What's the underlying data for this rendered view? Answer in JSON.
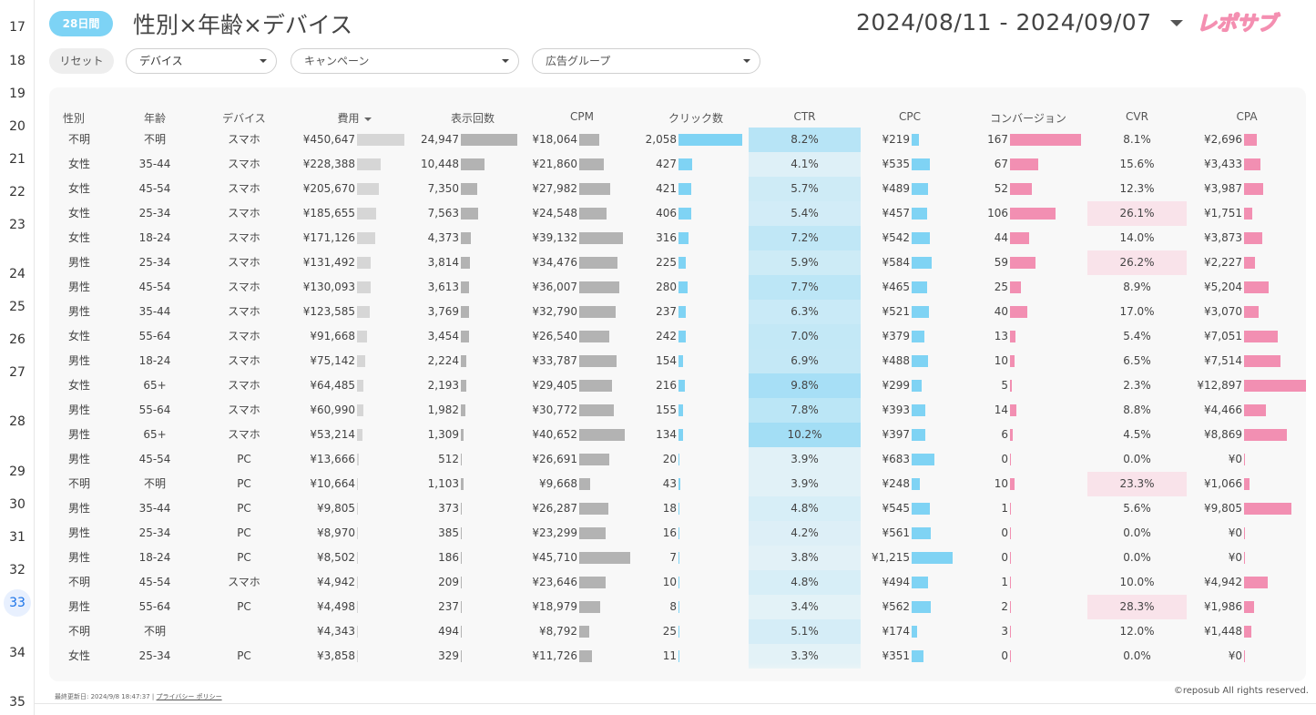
{
  "row_numbers": [
    "17",
    "18",
    "19",
    "20",
    "21",
    "22",
    "23",
    "24",
    "25",
    "26",
    "27",
    "28",
    "29",
    "30",
    "31",
    "32",
    "33",
    "34",
    "35"
  ],
  "active_row": "33",
  "header": {
    "period_badge": "28日間",
    "title": "性別×年齢×デバイス",
    "date_range": "2024/08/11 - 2024/09/07",
    "logo_text": "レポサブ"
  },
  "filters": {
    "reset_label": "リセット",
    "device": "デバイス",
    "campaign": "キャンペーン",
    "ad_group": "広告グループ"
  },
  "columns": [
    "性別",
    "年齢",
    "デバイス",
    "費用",
    "表示回数",
    "CPM",
    "クリック数",
    "CTR",
    "CPC",
    "コンバージョン",
    "CVR",
    "CPA"
  ],
  "sort_column": "費用",
  "rows": [
    {
      "gender": "不明",
      "age": "不明",
      "device": "スマホ",
      "cost": "¥450,647",
      "impr": "24,947",
      "cpm": "¥18,064",
      "clicks": "2,058",
      "ctr": "8.2%",
      "cpc": "¥219",
      "conv": "167",
      "cvr": "8.1%",
      "cpa": "¥2,696",
      "cost_v": 450647,
      "impr_v": 24947,
      "cpm_v": 18064,
      "clicks_v": 2058,
      "ctr_v": 8.2,
      "cpc_v": 219,
      "conv_v": 167,
      "cvr_v": 8.1,
      "cpa_v": 2696
    },
    {
      "gender": "女性",
      "age": "35-44",
      "device": "スマホ",
      "cost": "¥228,388",
      "impr": "10,448",
      "cpm": "¥21,860",
      "clicks": "427",
      "ctr": "4.1%",
      "cpc": "¥535",
      "conv": "67",
      "cvr": "15.6%",
      "cpa": "¥3,433",
      "cost_v": 228388,
      "impr_v": 10448,
      "cpm_v": 21860,
      "clicks_v": 427,
      "ctr_v": 4.1,
      "cpc_v": 535,
      "conv_v": 67,
      "cvr_v": 15.6,
      "cpa_v": 3433
    },
    {
      "gender": "女性",
      "age": "45-54",
      "device": "スマホ",
      "cost": "¥205,670",
      "impr": "7,350",
      "cpm": "¥27,982",
      "clicks": "421",
      "ctr": "5.7%",
      "cpc": "¥489",
      "conv": "52",
      "cvr": "12.3%",
      "cpa": "¥3,987",
      "cost_v": 205670,
      "impr_v": 7350,
      "cpm_v": 27982,
      "clicks_v": 421,
      "ctr_v": 5.7,
      "cpc_v": 489,
      "conv_v": 52,
      "cvr_v": 12.3,
      "cpa_v": 3987
    },
    {
      "gender": "女性",
      "age": "25-34",
      "device": "スマホ",
      "cost": "¥185,655",
      "impr": "7,563",
      "cpm": "¥24,548",
      "clicks": "406",
      "ctr": "5.4%",
      "cpc": "¥457",
      "conv": "106",
      "cvr": "26.1%",
      "cpa": "¥1,751",
      "cost_v": 185655,
      "impr_v": 7563,
      "cpm_v": 24548,
      "clicks_v": 406,
      "ctr_v": 5.4,
      "cpc_v": 457,
      "conv_v": 106,
      "cvr_v": 26.1,
      "cpa_v": 1751
    },
    {
      "gender": "女性",
      "age": "18-24",
      "device": "スマホ",
      "cost": "¥171,126",
      "impr": "4,373",
      "cpm": "¥39,132",
      "clicks": "316",
      "ctr": "7.2%",
      "cpc": "¥542",
      "conv": "44",
      "cvr": "14.0%",
      "cpa": "¥3,873",
      "cost_v": 171126,
      "impr_v": 4373,
      "cpm_v": 39132,
      "clicks_v": 316,
      "ctr_v": 7.2,
      "cpc_v": 542,
      "conv_v": 44,
      "cvr_v": 14.0,
      "cpa_v": 3873
    },
    {
      "gender": "男性",
      "age": "25-34",
      "device": "スマホ",
      "cost": "¥131,492",
      "impr": "3,814",
      "cpm": "¥34,476",
      "clicks": "225",
      "ctr": "5.9%",
      "cpc": "¥584",
      "conv": "59",
      "cvr": "26.2%",
      "cpa": "¥2,227",
      "cost_v": 131492,
      "impr_v": 3814,
      "cpm_v": 34476,
      "clicks_v": 225,
      "ctr_v": 5.9,
      "cpc_v": 584,
      "conv_v": 59,
      "cvr_v": 26.2,
      "cpa_v": 2227
    },
    {
      "gender": "男性",
      "age": "45-54",
      "device": "スマホ",
      "cost": "¥130,093",
      "impr": "3,613",
      "cpm": "¥36,007",
      "clicks": "280",
      "ctr": "7.7%",
      "cpc": "¥465",
      "conv": "25",
      "cvr": "8.9%",
      "cpa": "¥5,204",
      "cost_v": 130093,
      "impr_v": 3613,
      "cpm_v": 36007,
      "clicks_v": 280,
      "ctr_v": 7.7,
      "cpc_v": 465,
      "conv_v": 25,
      "cvr_v": 8.9,
      "cpa_v": 5204
    },
    {
      "gender": "男性",
      "age": "35-44",
      "device": "スマホ",
      "cost": "¥123,585",
      "impr": "3,769",
      "cpm": "¥32,790",
      "clicks": "237",
      "ctr": "6.3%",
      "cpc": "¥521",
      "conv": "40",
      "cvr": "17.0%",
      "cpa": "¥3,070",
      "cost_v": 123585,
      "impr_v": 3769,
      "cpm_v": 32790,
      "clicks_v": 237,
      "ctr_v": 6.3,
      "cpc_v": 521,
      "conv_v": 40,
      "cvr_v": 17.0,
      "cpa_v": 3070
    },
    {
      "gender": "女性",
      "age": "55-64",
      "device": "スマホ",
      "cost": "¥91,668",
      "impr": "3,454",
      "cpm": "¥26,540",
      "clicks": "242",
      "ctr": "7.0%",
      "cpc": "¥379",
      "conv": "13",
      "cvr": "5.4%",
      "cpa": "¥7,051",
      "cost_v": 91668,
      "impr_v": 3454,
      "cpm_v": 26540,
      "clicks_v": 242,
      "ctr_v": 7.0,
      "cpc_v": 379,
      "conv_v": 13,
      "cvr_v": 5.4,
      "cpa_v": 7051
    },
    {
      "gender": "男性",
      "age": "18-24",
      "device": "スマホ",
      "cost": "¥75,142",
      "impr": "2,224",
      "cpm": "¥33,787",
      "clicks": "154",
      "ctr": "6.9%",
      "cpc": "¥488",
      "conv": "10",
      "cvr": "6.5%",
      "cpa": "¥7,514",
      "cost_v": 75142,
      "impr_v": 2224,
      "cpm_v": 33787,
      "clicks_v": 154,
      "ctr_v": 6.9,
      "cpc_v": 488,
      "conv_v": 10,
      "cvr_v": 6.5,
      "cpa_v": 7514
    },
    {
      "gender": "女性",
      "age": "65+",
      "device": "スマホ",
      "cost": "¥64,485",
      "impr": "2,193",
      "cpm": "¥29,405",
      "clicks": "216",
      "ctr": "9.8%",
      "cpc": "¥299",
      "conv": "5",
      "cvr": "2.3%",
      "cpa": "¥12,897",
      "cost_v": 64485,
      "impr_v": 2193,
      "cpm_v": 29405,
      "clicks_v": 216,
      "ctr_v": 9.8,
      "cpc_v": 299,
      "conv_v": 5,
      "cvr_v": 2.3,
      "cpa_v": 12897
    },
    {
      "gender": "男性",
      "age": "55-64",
      "device": "スマホ",
      "cost": "¥60,990",
      "impr": "1,982",
      "cpm": "¥30,772",
      "clicks": "155",
      "ctr": "7.8%",
      "cpc": "¥393",
      "conv": "14",
      "cvr": "8.8%",
      "cpa": "¥4,466",
      "cost_v": 60990,
      "impr_v": 1982,
      "cpm_v": 30772,
      "clicks_v": 155,
      "ctr_v": 7.8,
      "cpc_v": 393,
      "conv_v": 14,
      "cvr_v": 8.8,
      "cpa_v": 4466
    },
    {
      "gender": "男性",
      "age": "65+",
      "device": "スマホ",
      "cost": "¥53,214",
      "impr": "1,309",
      "cpm": "¥40,652",
      "clicks": "134",
      "ctr": "10.2%",
      "cpc": "¥397",
      "conv": "6",
      "cvr": "4.5%",
      "cpa": "¥8,869",
      "cost_v": 53214,
      "impr_v": 1309,
      "cpm_v": 40652,
      "clicks_v": 134,
      "ctr_v": 10.2,
      "cpc_v": 397,
      "conv_v": 6,
      "cvr_v": 4.5,
      "cpa_v": 8869
    },
    {
      "gender": "男性",
      "age": "45-54",
      "device": "PC",
      "cost": "¥13,666",
      "impr": "512",
      "cpm": "¥26,691",
      "clicks": "20",
      "ctr": "3.9%",
      "cpc": "¥683",
      "conv": "0",
      "cvr": "0.0%",
      "cpa": "¥0",
      "cost_v": 13666,
      "impr_v": 512,
      "cpm_v": 26691,
      "clicks_v": 20,
      "ctr_v": 3.9,
      "cpc_v": 683,
      "conv_v": 0,
      "cvr_v": 0.0,
      "cpa_v": 0
    },
    {
      "gender": "不明",
      "age": "不明",
      "device": "PC",
      "cost": "¥10,664",
      "impr": "1,103",
      "cpm": "¥9,668",
      "clicks": "43",
      "ctr": "3.9%",
      "cpc": "¥248",
      "conv": "10",
      "cvr": "23.3%",
      "cpa": "¥1,066",
      "cost_v": 10664,
      "impr_v": 1103,
      "cpm_v": 9668,
      "clicks_v": 43,
      "ctr_v": 3.9,
      "cpc_v": 248,
      "conv_v": 10,
      "cvr_v": 23.3,
      "cpa_v": 1066
    },
    {
      "gender": "男性",
      "age": "35-44",
      "device": "PC",
      "cost": "¥9,805",
      "impr": "373",
      "cpm": "¥26,287",
      "clicks": "18",
      "ctr": "4.8%",
      "cpc": "¥545",
      "conv": "1",
      "cvr": "5.6%",
      "cpa": "¥9,805",
      "cost_v": 9805,
      "impr_v": 373,
      "cpm_v": 26287,
      "clicks_v": 18,
      "ctr_v": 4.8,
      "cpc_v": 545,
      "conv_v": 1,
      "cvr_v": 5.6,
      "cpa_v": 9805
    },
    {
      "gender": "男性",
      "age": "25-34",
      "device": "PC",
      "cost": "¥8,970",
      "impr": "385",
      "cpm": "¥23,299",
      "clicks": "16",
      "ctr": "4.2%",
      "cpc": "¥561",
      "conv": "0",
      "cvr": "0.0%",
      "cpa": "¥0",
      "cost_v": 8970,
      "impr_v": 385,
      "cpm_v": 23299,
      "clicks_v": 16,
      "ctr_v": 4.2,
      "cpc_v": 561,
      "conv_v": 0,
      "cvr_v": 0.0,
      "cpa_v": 0
    },
    {
      "gender": "男性",
      "age": "18-24",
      "device": "PC",
      "cost": "¥8,502",
      "impr": "186",
      "cpm": "¥45,710",
      "clicks": "7",
      "ctr": "3.8%",
      "cpc": "¥1,215",
      "conv": "0",
      "cvr": "0.0%",
      "cpa": "¥0",
      "cost_v": 8502,
      "impr_v": 186,
      "cpm_v": 45710,
      "clicks_v": 7,
      "ctr_v": 3.8,
      "cpc_v": 1215,
      "conv_v": 0,
      "cvr_v": 0.0,
      "cpa_v": 0
    },
    {
      "gender": "不明",
      "age": "45-54",
      "device": "スマホ",
      "cost": "¥4,942",
      "impr": "209",
      "cpm": "¥23,646",
      "clicks": "10",
      "ctr": "4.8%",
      "cpc": "¥494",
      "conv": "1",
      "cvr": "10.0%",
      "cpa": "¥4,942",
      "cost_v": 4942,
      "impr_v": 209,
      "cpm_v": 23646,
      "clicks_v": 10,
      "ctr_v": 4.8,
      "cpc_v": 494,
      "conv_v": 1,
      "cvr_v": 10.0,
      "cpa_v": 4942
    },
    {
      "gender": "男性",
      "age": "55-64",
      "device": "PC",
      "cost": "¥4,498",
      "impr": "237",
      "cpm": "¥18,979",
      "clicks": "8",
      "ctr": "3.4%",
      "cpc": "¥562",
      "conv": "2",
      "cvr": "28.3%",
      "cpa": "¥1,986",
      "cost_v": 4498,
      "impr_v": 237,
      "cpm_v": 18979,
      "clicks_v": 8,
      "ctr_v": 3.4,
      "cpc_v": 562,
      "conv_v": 2,
      "cvr_v": 28.3,
      "cpa_v": 1986
    },
    {
      "gender": "不明",
      "age": "不明",
      "device": "",
      "cost": "¥4,343",
      "impr": "494",
      "cpm": "¥8,792",
      "clicks": "25",
      "ctr": "5.1%",
      "cpc": "¥174",
      "conv": "3",
      "cvr": "12.0%",
      "cpa": "¥1,448",
      "cost_v": 4343,
      "impr_v": 494,
      "cpm_v": 8792,
      "clicks_v": 25,
      "ctr_v": 5.1,
      "cpc_v": 174,
      "conv_v": 3,
      "cvr_v": 12.0,
      "cpa_v": 1448
    },
    {
      "gender": "女性",
      "age": "25-34",
      "device": "PC",
      "cost": "¥3,858",
      "impr": "329",
      "cpm": "¥11,726",
      "clicks": "11",
      "ctr": "3.3%",
      "cpc": "¥351",
      "conv": "0",
      "cvr": "0.0%",
      "cpa": "¥0",
      "cost_v": 3858,
      "impr_v": 329,
      "cpm_v": 11726,
      "clicks_v": 11,
      "ctr_v": 3.3,
      "cpc_v": 351,
      "conv_v": 0,
      "cvr_v": 0.0,
      "cpa_v": 0
    }
  ],
  "footer": {
    "updated": "最終更新日: 2024/9/8 18:47:37",
    "separator": "|",
    "privacy": "プライバシー ポリシー",
    "copyright": "©reposub All rights reserved."
  },
  "colors": {
    "accent": "#7dd3f5",
    "bar_gray": "#b3b3b3",
    "bar_blue": "#7fd3f4",
    "bar_pink": "#f28fb2",
    "cvr_highlight": "#f9e3ea"
  }
}
